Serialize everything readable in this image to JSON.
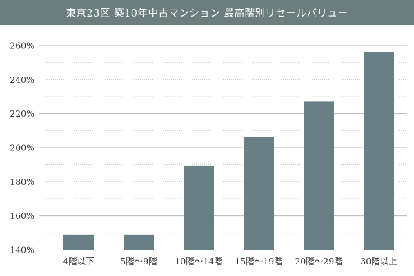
{
  "colors": {
    "title_bar": "#6b7d7f",
    "bar": "#687f85",
    "grid_major": "#b8b8b8",
    "grid_minor": "#c8c8c8",
    "axis": "#555555"
  },
  "chart_data": {
    "type": "bar",
    "title": "東京23区 築10年中古マンション 最高階別リセールバリュー",
    "xlabel": "",
    "ylabel": "",
    "categories": [
      "4階以下",
      "5階～9階",
      "10階～14階",
      "15階～19階",
      "20階～29階",
      "30階以上"
    ],
    "values": [
      149,
      149,
      189.5,
      206.5,
      227,
      256
    ],
    "ylim": [
      140,
      270
    ],
    "y_ticks": [
      140,
      160,
      180,
      200,
      220,
      240,
      260
    ],
    "y_tick_labels": [
      "140%",
      "160%",
      "180%",
      "200%",
      "220%",
      "240%",
      "260%"
    ],
    "major_gridlines": [
      160,
      200,
      220,
      260
    ],
    "minor_gridlines": [
      150,
      170,
      180,
      190,
      210,
      230,
      240,
      250
    ],
    "grid": true,
    "legend": "none"
  }
}
